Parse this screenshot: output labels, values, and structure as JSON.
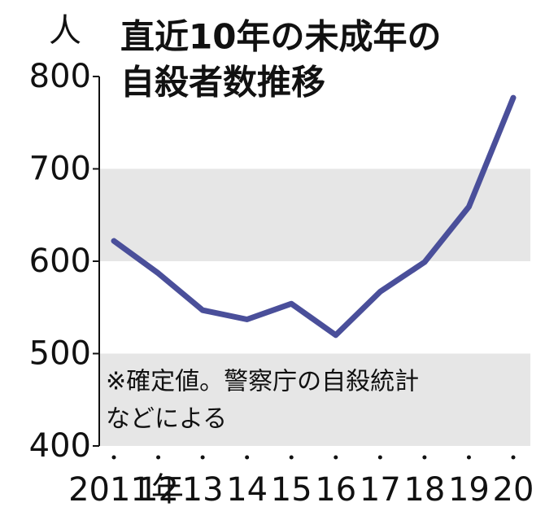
{
  "chart_data": {
    "type": "line",
    "title": [
      "直近10年の未成年の",
      "自殺者数推移"
    ],
    "y_unit": "人",
    "note": [
      "※確定値。警察庁の自殺統計",
      "などによる"
    ],
    "categories": [
      "2011年",
      "12",
      "13",
      "14",
      "15",
      "16",
      "17",
      "18",
      "19",
      "20"
    ],
    "values": [
      622,
      587,
      547,
      537,
      554,
      520,
      567,
      599,
      659,
      777
    ],
    "color": "#4a4f9a",
    "ylim": [
      400,
      800
    ],
    "yticks": [
      400,
      500,
      600,
      700,
      800
    ],
    "bands": [
      [
        400,
        500
      ],
      [
        600,
        700
      ]
    ],
    "band_color": "#e6e6e6"
  }
}
